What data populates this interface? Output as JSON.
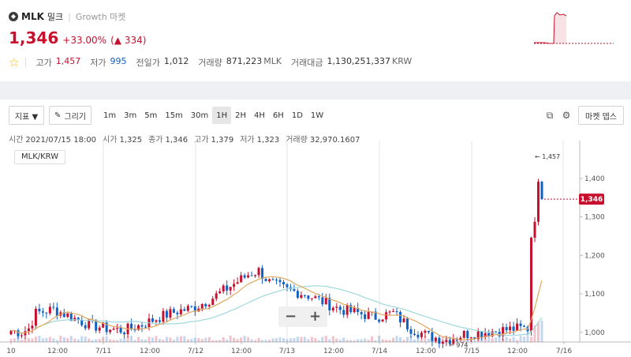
{
  "coin": {
    "logo_icon": "coin-logo-icon",
    "symbol": "MLK",
    "name": "밀크",
    "market": "Growth 마켓"
  },
  "price": {
    "current": "1,346",
    "change_rate": "+33.00%",
    "change_arrow": "▲",
    "change_amount": "334"
  },
  "stats": {
    "favorite_icon": "star-icon",
    "high_label": "고가",
    "high": "1,457",
    "low_label": "저가",
    "low": "995",
    "prev_close_label": "전일가",
    "prev_close": "1,012",
    "volume_label": "거래량",
    "volume": "871,223",
    "volume_unit": "MLK",
    "amount_label": "거래대금",
    "amount": "1,130,251,337",
    "amount_unit": "KRW"
  },
  "toolbar": {
    "indicator_label": "지표 ▼",
    "draw_label": "그리기",
    "draw_icon": "pencil-icon",
    "intervals": [
      "1m",
      "3m",
      "5m",
      "15m",
      "30m",
      "1H",
      "2H",
      "4H",
      "6H",
      "1D",
      "1W"
    ],
    "active_interval": "1H",
    "export_icon": "external-link-icon",
    "settings_icon": "gear-icon",
    "depth_label": "마켓 뎁스"
  },
  "info_bar": {
    "time_label": "시간",
    "time": "2021/07/15 18:00",
    "open_label": "시가",
    "open": "1,325",
    "close_label": "종가",
    "close": "1,346",
    "high_label": "고가",
    "high": "1,379",
    "low_label": "저가",
    "low": "1,323",
    "volume_label": "거래량",
    "volume": "32,970.1607"
  },
  "pair_label": "MLK/KRW",
  "chart_data": {
    "type": "candlestick",
    "y_ticks": [
      "1,400",
      "1,300",
      "1,200",
      "1,100",
      "1,000"
    ],
    "ylim": [
      975,
      1490
    ],
    "x_ticks": [
      "10",
      "12:00",
      "7/11",
      "12:00",
      "7/12",
      "12:00",
      "7/13",
      "12:00",
      "7/14",
      "12:00",
      "7/15",
      "12:00",
      "7/16"
    ],
    "current_price_label": "1,346",
    "max_marker": "1,457",
    "min_marker": "974",
    "grid": "vertical",
    "colors": {
      "up": "#c8102e",
      "down": "#1261c4",
      "ma_short": "#e0a860",
      "ma_long": "#9fd8dc"
    }
  },
  "zoom": {
    "minus": "−",
    "plus": "+"
  }
}
